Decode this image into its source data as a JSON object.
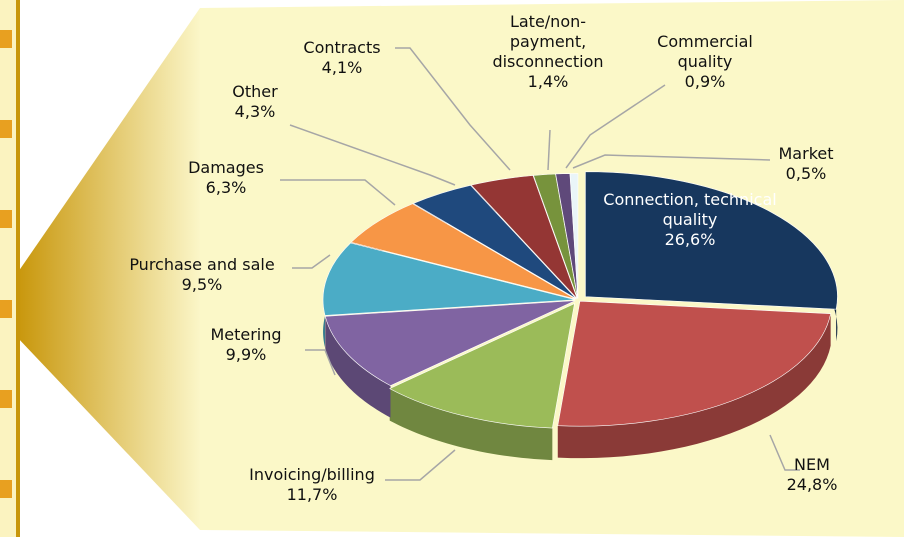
{
  "chart_data": {
    "type": "pie",
    "categories": [
      "Connection, technical quality",
      "NEM",
      "Invoicing/billing",
      "Metering",
      "Purchase and sale",
      "Damages",
      "Other",
      "Contracts",
      "Late/non-payment, disconnection",
      "Commercial quality",
      "Market"
    ],
    "values": [
      26.6,
      24.8,
      11.7,
      9.9,
      9.5,
      6.3,
      4.3,
      4.1,
      1.4,
      0.9,
      0.5
    ],
    "value_labels": [
      "26,6%",
      "24,8%",
      "11,7%",
      "9,9%",
      "9,5%",
      "6,3%",
      "4,3%",
      "4,1%",
      "1,4%",
      "0,9%",
      "0,5%"
    ],
    "colors": [
      "#17375e",
      "#c0504d",
      "#9bbb59",
      "#8064a2",
      "#4bacc6",
      "#f79646",
      "#1f497d",
      "#943634",
      "#77933c",
      "#5f497a",
      "#eaf5f8"
    ]
  }
}
